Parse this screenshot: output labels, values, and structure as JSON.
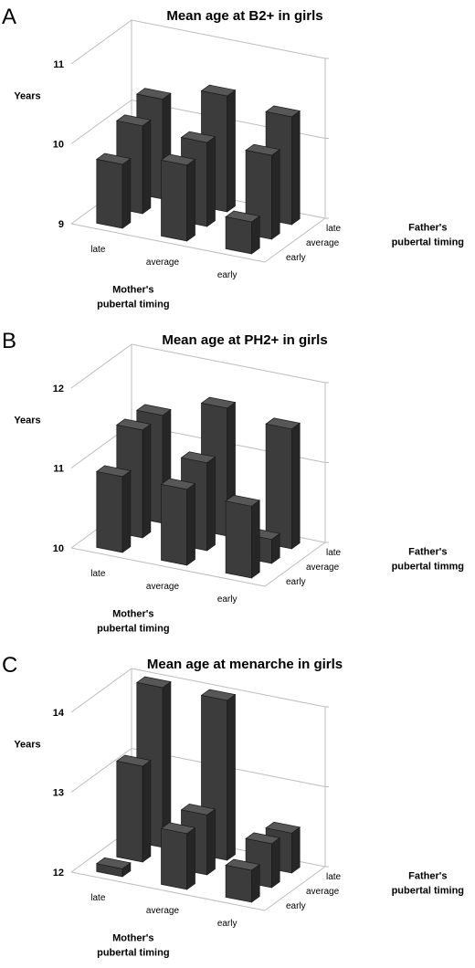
{
  "chart_data": [
    {
      "type": "bar3d",
      "panel": "A",
      "title": "Mean age at B2+ in girls",
      "ylabel": "Years",
      "xlabel": [
        "Mother's",
        "pubertal timing"
      ],
      "zlabel": [
        "Father's",
        "pubertal timing"
      ],
      "x_categories": [
        "late",
        "average",
        "early"
      ],
      "z_categories": [
        "early",
        "average",
        "late"
      ],
      "yticks": [
        9,
        10,
        11
      ],
      "ylim": [
        9,
        11
      ],
      "values": [
        [
          9.8,
          9.95,
          9.4
        ],
        [
          10.1,
          10.05,
          10.05
        ],
        [
          10.25,
          10.45,
          10.35
        ]
      ]
    },
    {
      "type": "bar3d",
      "panel": "B",
      "title": "Mean age at PH2+ in girls",
      "ylabel": "Years",
      "xlabel": [
        "Mother's",
        "pubertal timing"
      ],
      "zlabel": [
        "Father's",
        "pubertal timmg"
      ],
      "x_categories": [
        "late",
        "average",
        "early"
      ],
      "z_categories": [
        "early",
        "average",
        "late"
      ],
      "yticks": [
        10,
        11,
        12
      ],
      "ylim": [
        10,
        12
      ],
      "values": [
        [
          10.95,
          10.95,
          10.9
        ],
        [
          11.35,
          11.1,
          10.3
        ],
        [
          11.35,
          11.6,
          11.5
        ]
      ]
    },
    {
      "type": "bar3d",
      "panel": "C",
      "title": "Mean age at menarche in girls",
      "ylabel": "Years",
      "xlabel": [
        "Mother's",
        "pubertal timing"
      ],
      "zlabel": [
        "Father's",
        "pubertal timing"
      ],
      "x_categories": [
        "late",
        "average",
        "early"
      ],
      "z_categories": [
        "early",
        "average",
        "late"
      ],
      "yticks": [
        12,
        13,
        14
      ],
      "ylim": [
        12,
        14
      ],
      "values": [
        [
          12.1,
          12.7,
          12.4
        ],
        [
          13.2,
          12.75,
          12.55
        ],
        [
          14.0,
          14.0,
          12.5
        ]
      ]
    }
  ]
}
